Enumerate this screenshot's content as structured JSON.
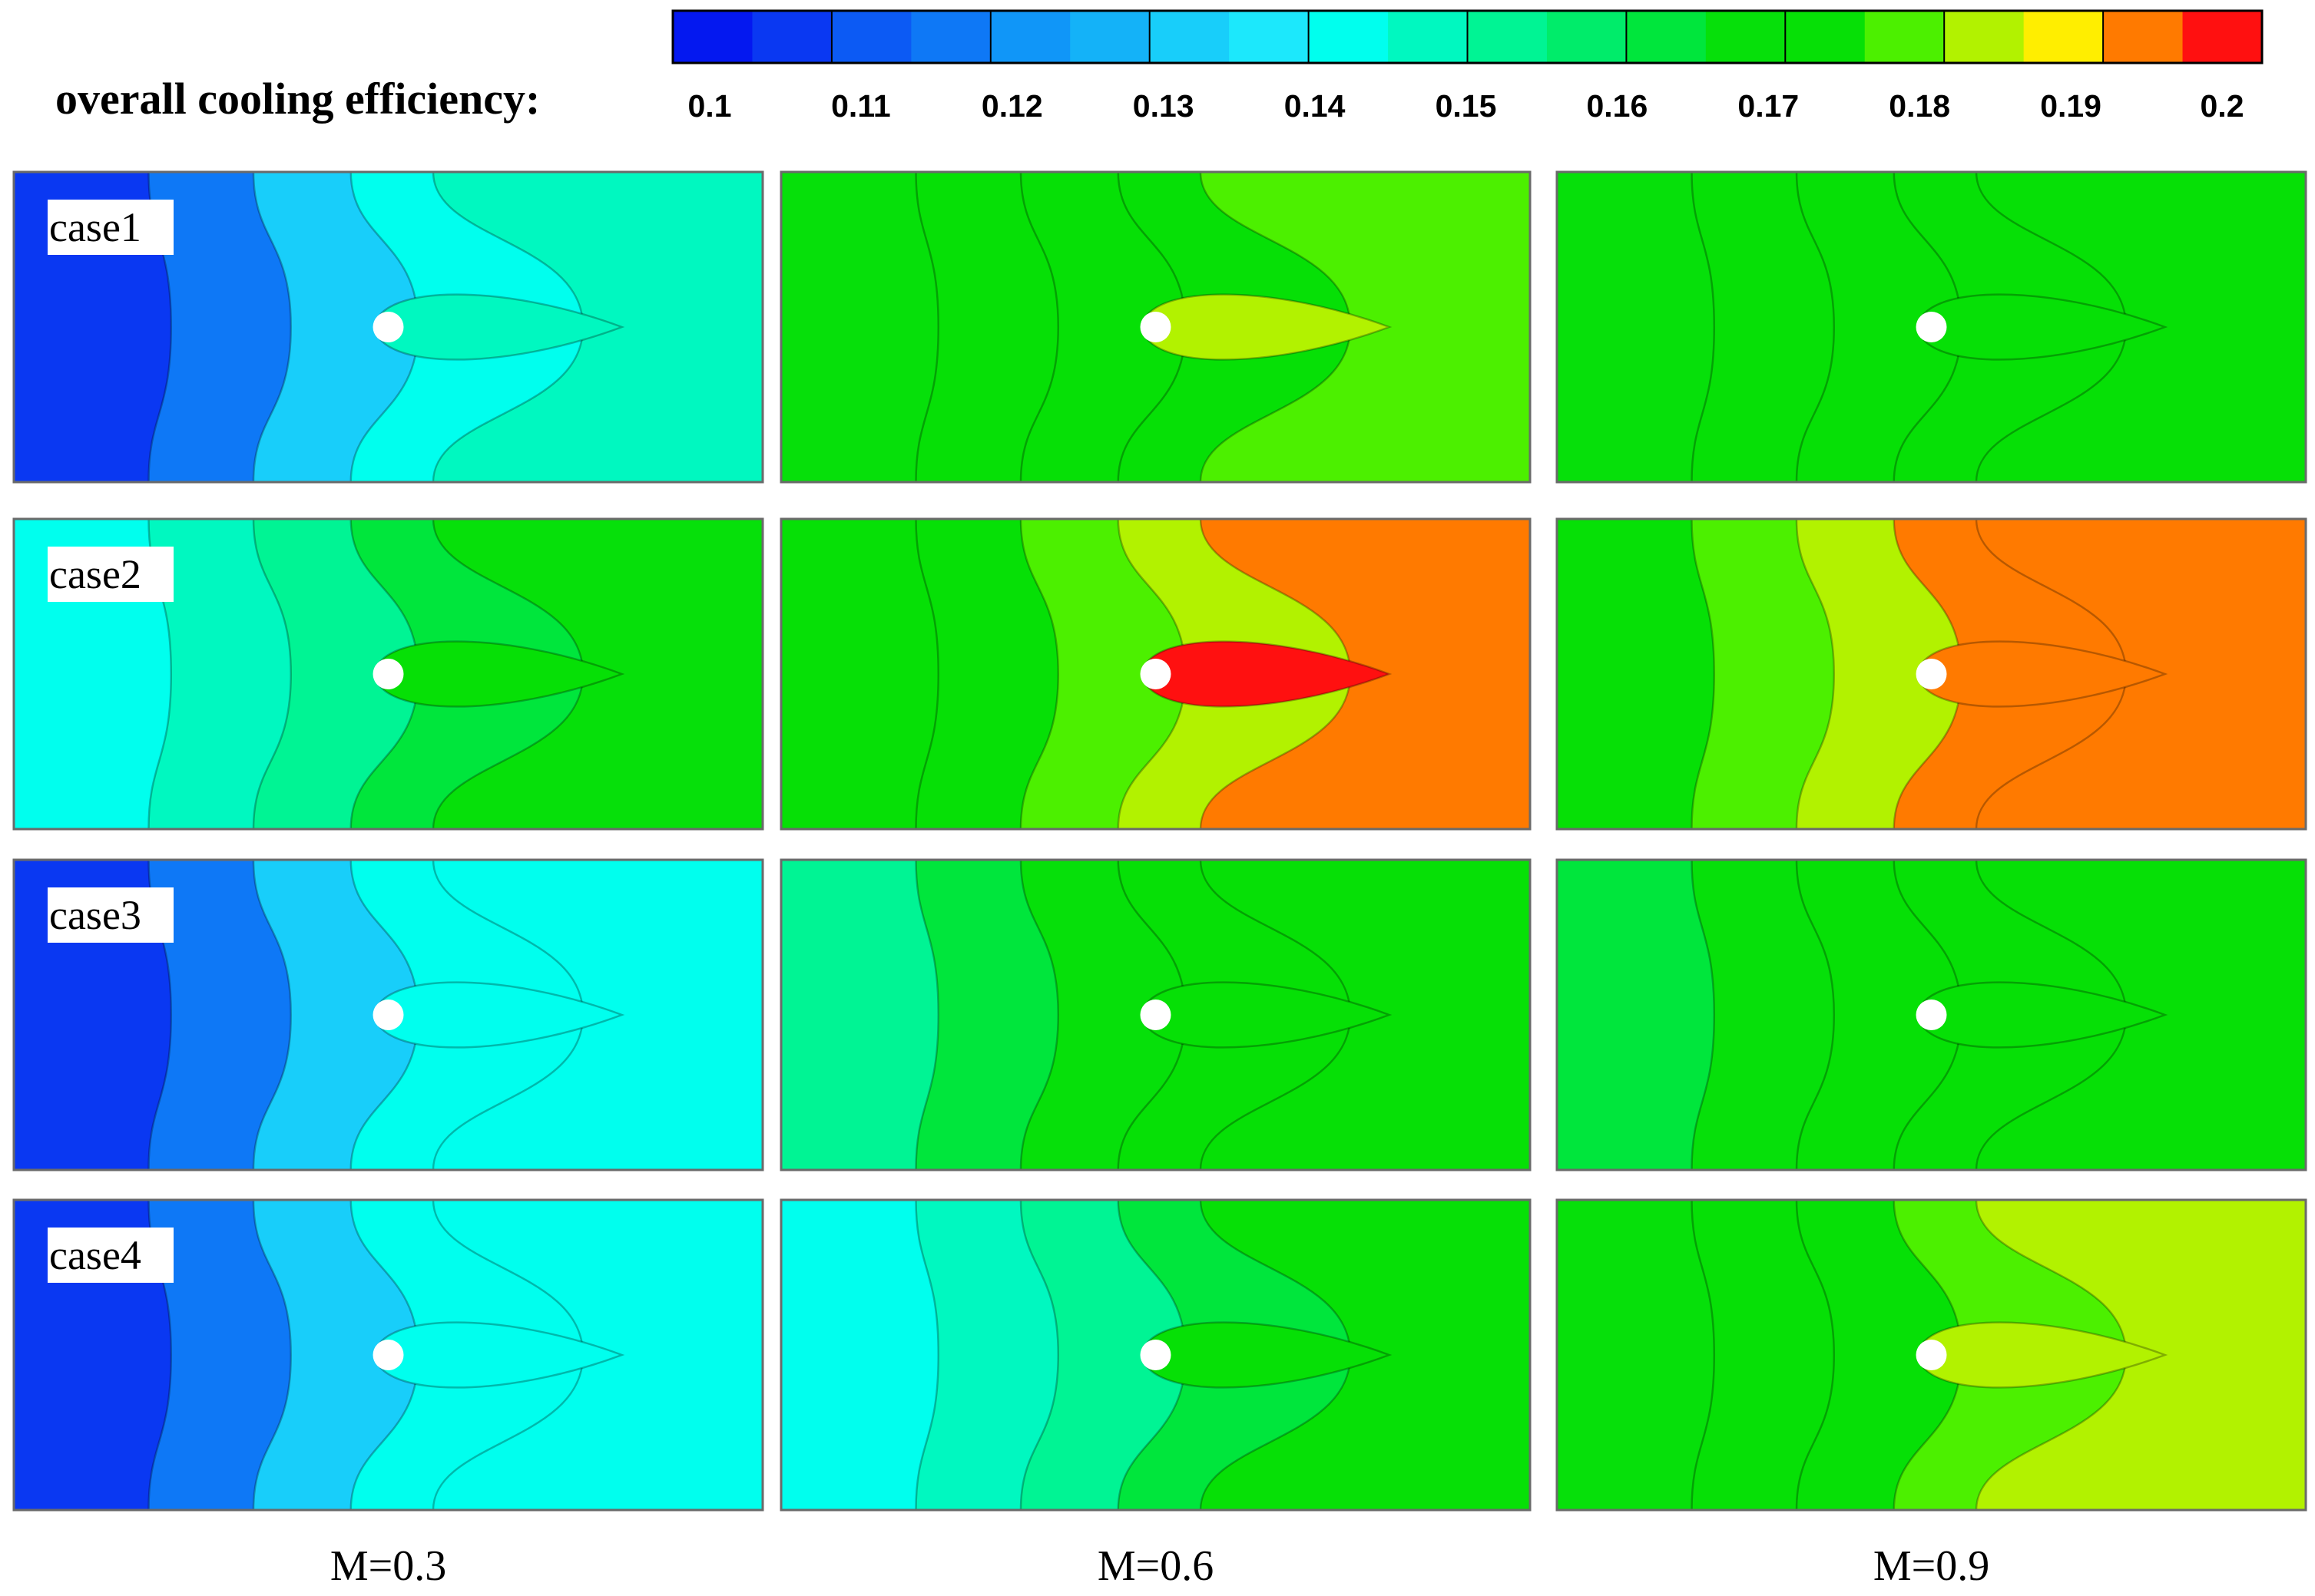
{
  "chart_data": {
    "type": "heatmap",
    "colorbar": {
      "title": "overall cooling efficiency:",
      "min": 0.1,
      "max": 0.2,
      "tick_labels": [
        "0.1",
        "0.11",
        "0.12",
        "0.13",
        "0.14",
        "0.15",
        "0.16",
        "0.17",
        "0.18",
        "0.19",
        "0.2"
      ],
      "colors": [
        "#0418f0",
        "#0a38f2",
        "#0c5af4",
        "#0e78f6",
        "#1096f8",
        "#14b2f8",
        "#18cefa",
        "#1ce8fc",
        "#00ffee",
        "#00f8c0",
        "#00f494",
        "#00ec6a",
        "#00e63c",
        "#06e00a",
        "#06e006",
        "#4cf000",
        "#b2f200",
        "#ffee00",
        "#ff7a00",
        "#ff1010"
      ]
    },
    "columns": [
      "M=0.3",
      "M=0.6",
      "M=0.9"
    ],
    "rows": [
      "case1",
      "case2",
      "case3",
      "case4"
    ],
    "panels": [
      {
        "case": "case1",
        "M": "M=0.3",
        "bands": [
          0.11,
          0.12,
          0.13,
          0.14,
          0.15
        ],
        "plume_value": 0.15
      },
      {
        "case": "case1",
        "M": "M=0.6",
        "bands": [
          0.165,
          0.17,
          0.173,
          0.175,
          0.18
        ],
        "plume_value": 0.185
      },
      {
        "case": "case1",
        "M": "M=0.9",
        "bands": [
          0.165,
          0.17,
          0.172,
          0.174,
          0.175
        ],
        "plume_value": 0.172
      },
      {
        "case": "case2",
        "M": "M=0.3",
        "bands": [
          0.145,
          0.15,
          0.155,
          0.16,
          0.165
        ],
        "plume_value": 0.17
      },
      {
        "case": "case2",
        "M": "M=0.6",
        "bands": [
          0.17,
          0.175,
          0.18,
          0.185,
          0.19
        ],
        "plume_value": 0.197
      },
      {
        "case": "case2",
        "M": "M=0.9",
        "bands": [
          0.172,
          0.18,
          0.182,
          0.19,
          0.194
        ],
        "plume_value": 0.194
      },
      {
        "case": "case3",
        "M": "M=0.3",
        "bands": [
          0.11,
          0.12,
          0.13,
          0.14,
          0.145
        ],
        "plume_value": 0.145
      },
      {
        "case": "case3",
        "M": "M=0.6",
        "bands": [
          0.155,
          0.16,
          0.165,
          0.17,
          0.172
        ],
        "plume_value": 0.172
      },
      {
        "case": "case3",
        "M": "M=0.9",
        "bands": [
          0.16,
          0.165,
          0.17,
          0.172,
          0.174
        ],
        "plume_value": 0.172
      },
      {
        "case": "case4",
        "M": "M=0.3",
        "bands": [
          0.11,
          0.12,
          0.13,
          0.14,
          0.145
        ],
        "plume_value": 0.145
      },
      {
        "case": "case4",
        "M": "M=0.6",
        "bands": [
          0.145,
          0.15,
          0.155,
          0.16,
          0.17
        ],
        "plume_value": 0.17
      },
      {
        "case": "case4",
        "M": "M=0.9",
        "bands": [
          0.165,
          0.17,
          0.175,
          0.178,
          0.182
        ],
        "plume_value": 0.185
      }
    ]
  }
}
